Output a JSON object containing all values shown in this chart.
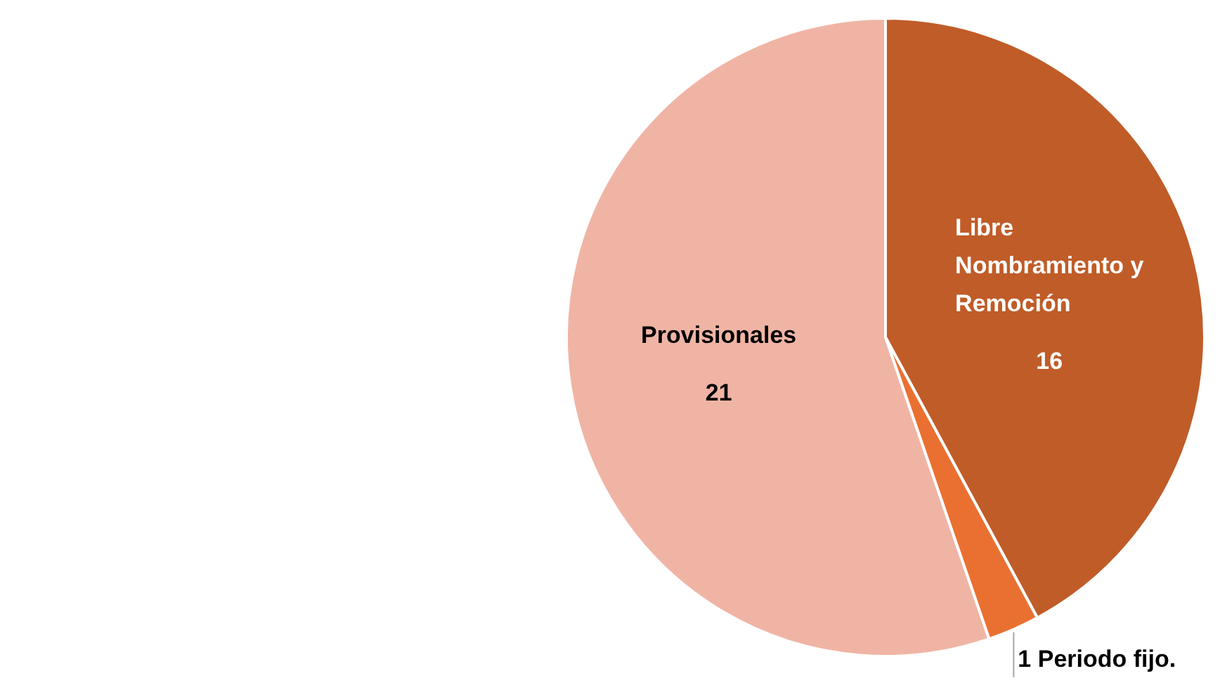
{
  "chart_data": {
    "type": "pie",
    "categories": [
      "Libre Nombramiento y Remoción",
      "Periodo fijo.",
      "Provisionales"
    ],
    "values": [
      16,
      1,
      21
    ],
    "colors": [
      "#c05c28",
      "#ea7032",
      "#f0b4a5"
    ],
    "data_labels": true,
    "legend": false
  }
}
